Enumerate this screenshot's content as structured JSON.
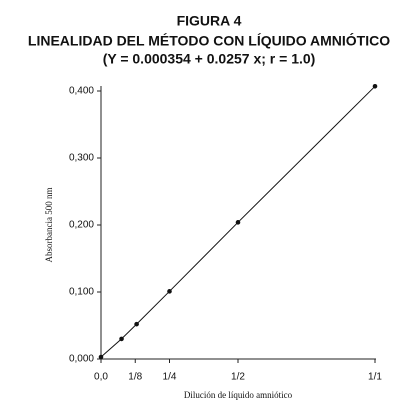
{
  "chart_data": {
    "type": "line",
    "title": "FIGURA 4",
    "subtitle": "LINEALIDAD DEL MÉTODO CON LÍQUIDO AMNIÓTICO",
    "annotation": "(Y = 0.000354 + 0.0257 x; r = 1.0)",
    "x_label": "Dilución de líquido amniótico",
    "y_label": "Absorbancia 500 nm",
    "x": [
      0,
      0.075,
      0.13,
      0.25,
      0.5,
      1.0
    ],
    "values": [
      0.003,
      0.03,
      0.052,
      0.101,
      0.204,
      0.407
    ],
    "color": "#111111",
    "xlim": [
      0,
      1
    ],
    "xticks": [
      {
        "value": 0,
        "label": "0,0"
      },
      {
        "value": 0.125,
        "label": "1/8"
      },
      {
        "value": 0.25,
        "label": "1/4"
      },
      {
        "value": 0.5,
        "label": "1/2"
      },
      {
        "value": 1,
        "label": "1/1"
      }
    ],
    "ylim": [
      0,
      0.4
    ],
    "yticks": [
      {
        "value": 0,
        "label": "0,000"
      },
      {
        "value": 0.1,
        "label": "0,100"
      },
      {
        "value": 0.2,
        "label": "0,200"
      },
      {
        "value": 0.3,
        "label": "0,300"
      },
      {
        "value": 0.4,
        "label": "0,400"
      }
    ],
    "grid": false
  }
}
